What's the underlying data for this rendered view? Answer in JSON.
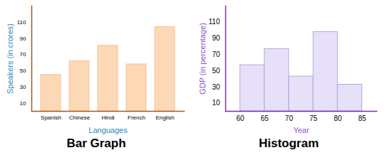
{
  "chart_data": [
    {
      "type": "bar",
      "title": "Bar Graph",
      "x_label": "Languages",
      "y_label": "Speakers (in crores)",
      "categories": [
        "Spanish",
        "Chinese",
        "Hindi",
        "French",
        "English"
      ],
      "values": [
        45,
        62,
        81,
        58,
        104
      ],
      "color": "#fcd8b6",
      "ylim": [
        0,
        130
      ],
      "yticks": [
        10,
        30,
        50,
        70,
        90,
        110
      ]
    },
    {
      "type": "histogram",
      "title": "Histogram",
      "x_label": "Year",
      "y_label": "GDP (in percentage)",
      "bins": [
        60,
        65,
        70,
        75,
        80,
        85
      ],
      "values": [
        57,
        77,
        43,
        98,
        33
      ],
      "color": "#e6e0f8",
      "xlim": [
        57,
        88
      ],
      "xticks": [
        60,
        65,
        70,
        75,
        80,
        85
      ],
      "ylim": [
        0,
        130
      ],
      "yticks": [
        10,
        30,
        50,
        70,
        90,
        110
      ]
    }
  ]
}
